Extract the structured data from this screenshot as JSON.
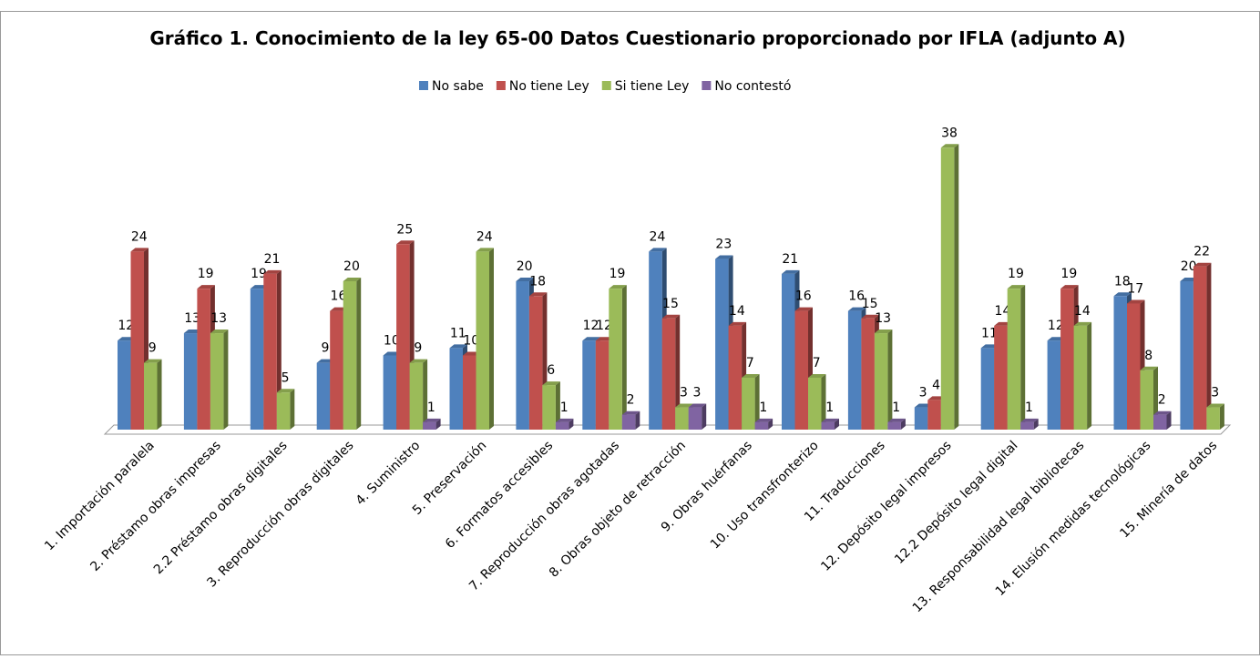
{
  "chart_data": {
    "type": "bar3d",
    "title": "Gráfico 1. Conocimiento de la ley 65-00 Datos Cuestionario proporcionado por IFLA (adjunto A)",
    "categories": [
      "1. Importación paralela",
      "2. Préstamo obras impresas",
      "2.2 Préstamo obras digitales",
      "3. Reproducción obras digitales",
      "4. Suministro",
      "5. Preservación",
      "6. Formatos accesibles",
      "7. Reproducción obras agotadas",
      "8. Obras objeto de retracción",
      "9. Obras huérfanas",
      "10. Uso transfronterizo",
      "11. Traducciones",
      "12. Depósito legal impresos",
      "12.2 Depósito legal digital",
      "13. Responsabilidad legal bibliotecas",
      "14. Elusión medidas tecnológicas",
      "15. Minería de datos"
    ],
    "series": [
      {
        "name": "No sabe",
        "color": "#4f81bd",
        "values": [
          12,
          13,
          19,
          9,
          10,
          11,
          20,
          12,
          24,
          23,
          21,
          16,
          3,
          11,
          12,
          18,
          20
        ]
      },
      {
        "name": "No tiene Ley",
        "color": "#c0504d",
        "values": [
          24,
          19,
          21,
          16,
          25,
          10,
          18,
          12,
          15,
          14,
          16,
          15,
          4,
          14,
          19,
          17,
          22
        ]
      },
      {
        "name": "Si tiene Ley",
        "color": "#9bbb59",
        "values": [
          9,
          13,
          5,
          20,
          9,
          24,
          6,
          19,
          3,
          7,
          7,
          13,
          38,
          19,
          14,
          8,
          3
        ]
      },
      {
        "name": "No contestó",
        "color": "#8064a2",
        "values": [
          null,
          null,
          null,
          null,
          1,
          null,
          1,
          2,
          3,
          1,
          1,
          1,
          null,
          1,
          null,
          2,
          null
        ]
      }
    ],
    "legend": "top"
  }
}
